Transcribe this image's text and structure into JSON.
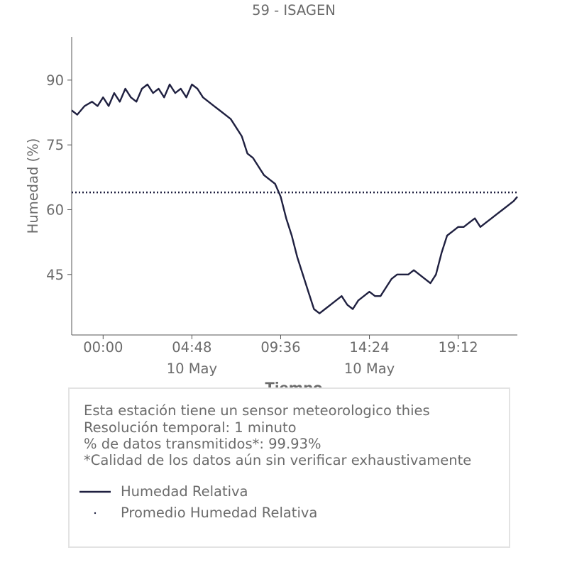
{
  "chart_data": {
    "type": "line",
    "title": "59 - ISAGEN",
    "xlabel": "Tiempo",
    "ylabel": "Humedad (%)",
    "x_ticks": [
      {
        "time": "00:00",
        "date": ""
      },
      {
        "time": "04:48",
        "date": "10 May"
      },
      {
        "time": "09:36",
        "date": ""
      },
      {
        "time": "14:24",
        "date": "10 May"
      },
      {
        "time": "19:12",
        "date": ""
      }
    ],
    "y_ticks": [
      45,
      60,
      75,
      90
    ],
    "xlim_hours": [
      -1.7,
      22.4
    ],
    "ylim": [
      31,
      100
    ],
    "grid": false,
    "series": [
      {
        "name": "Humedad Relativa",
        "color": "#1f2040",
        "style": "solid",
        "x_hours": [
          -1.7,
          -1.4,
          -1.0,
          -0.6,
          -0.3,
          0.0,
          0.3,
          0.6,
          0.9,
          1.2,
          1.5,
          1.8,
          2.1,
          2.4,
          2.7,
          3.0,
          3.3,
          3.6,
          3.9,
          4.2,
          4.5,
          4.8,
          5.1,
          5.4,
          5.7,
          6.0,
          6.3,
          6.6,
          6.9,
          7.2,
          7.5,
          7.8,
          8.1,
          8.4,
          8.7,
          9.0,
          9.3,
          9.6,
          9.9,
          10.2,
          10.5,
          10.8,
          11.1,
          11.4,
          11.7,
          12.0,
          12.3,
          12.6,
          12.9,
          13.2,
          13.5,
          13.8,
          14.1,
          14.4,
          14.7,
          15.0,
          15.3,
          15.6,
          15.9,
          16.2,
          16.5,
          16.8,
          17.1,
          17.4,
          17.7,
          18.0,
          18.3,
          18.6,
          18.9,
          19.2,
          19.5,
          19.8,
          20.1,
          20.4,
          20.7,
          21.0,
          21.3,
          21.6,
          21.9,
          22.2,
          22.4
        ],
        "values": [
          83,
          82,
          84,
          85,
          84,
          86,
          84,
          87,
          85,
          88,
          86,
          85,
          88,
          89,
          87,
          88,
          86,
          89,
          87,
          88,
          86,
          89,
          88,
          86,
          85,
          84,
          83,
          82,
          81,
          79,
          77,
          73,
          72,
          70,
          68,
          67,
          66,
          63,
          58,
          54,
          49,
          45,
          41,
          37,
          36,
          37,
          38,
          39,
          40,
          38,
          37,
          39,
          40,
          41,
          40,
          40,
          42,
          44,
          45,
          45,
          45,
          46,
          45,
          44,
          43,
          45,
          50,
          54,
          55,
          56,
          56,
          57,
          58,
          56,
          57,
          58,
          59,
          60,
          61,
          62,
          63
        ]
      },
      {
        "name": "Promedio Humedad Relativa",
        "color": "#1f2040",
        "style": "dotted",
        "value": 64
      }
    ]
  },
  "info": {
    "lines": [
      "Esta estación tiene un sensor meteorologico thies",
      "Resolución temporal: 1 minuto",
      "% de datos transmitidos*: 99.93%",
      "*Calidad de los datos aún sin verificar exhaustivamente"
    ]
  }
}
